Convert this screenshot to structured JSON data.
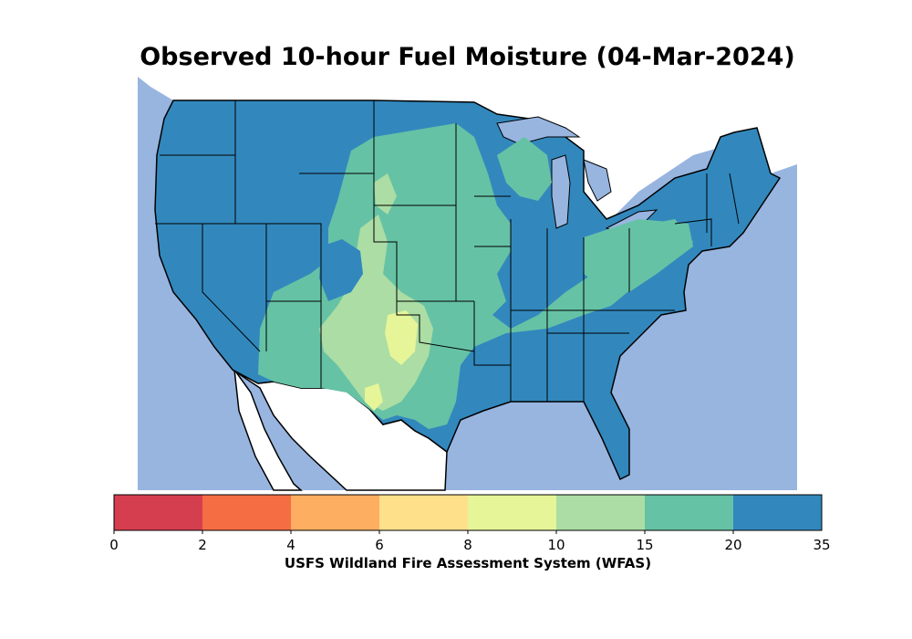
{
  "map": {
    "title": "Observed 10-hour Fuel Moisture (04-Mar-2024)",
    "water_color": "#98b5e0",
    "land_outside_color": "#ffffff",
    "border_color": "#000000"
  },
  "colorbar": {
    "label": "USFS Wildland Fire Assessment System (WFAS)",
    "bins": [
      {
        "from": "0",
        "to": "2",
        "color": "#d53e4f"
      },
      {
        "from": "2",
        "to": "4",
        "color": "#f46d43"
      },
      {
        "from": "4",
        "to": "6",
        "color": "#fdae61"
      },
      {
        "from": "6",
        "to": "8",
        "color": "#fee08b"
      },
      {
        "from": "8",
        "to": "10",
        "color": "#e6f598"
      },
      {
        "from": "10",
        "to": "15",
        "color": "#abdda4"
      },
      {
        "from": "15",
        "to": "20",
        "color": "#66c2a5"
      },
      {
        "from": "20",
        "to": "35",
        "color": "#3288bd"
      }
    ],
    "ticks": [
      "0",
      "2",
      "4",
      "6",
      "8",
      "10",
      "15",
      "20",
      "35"
    ]
  }
}
